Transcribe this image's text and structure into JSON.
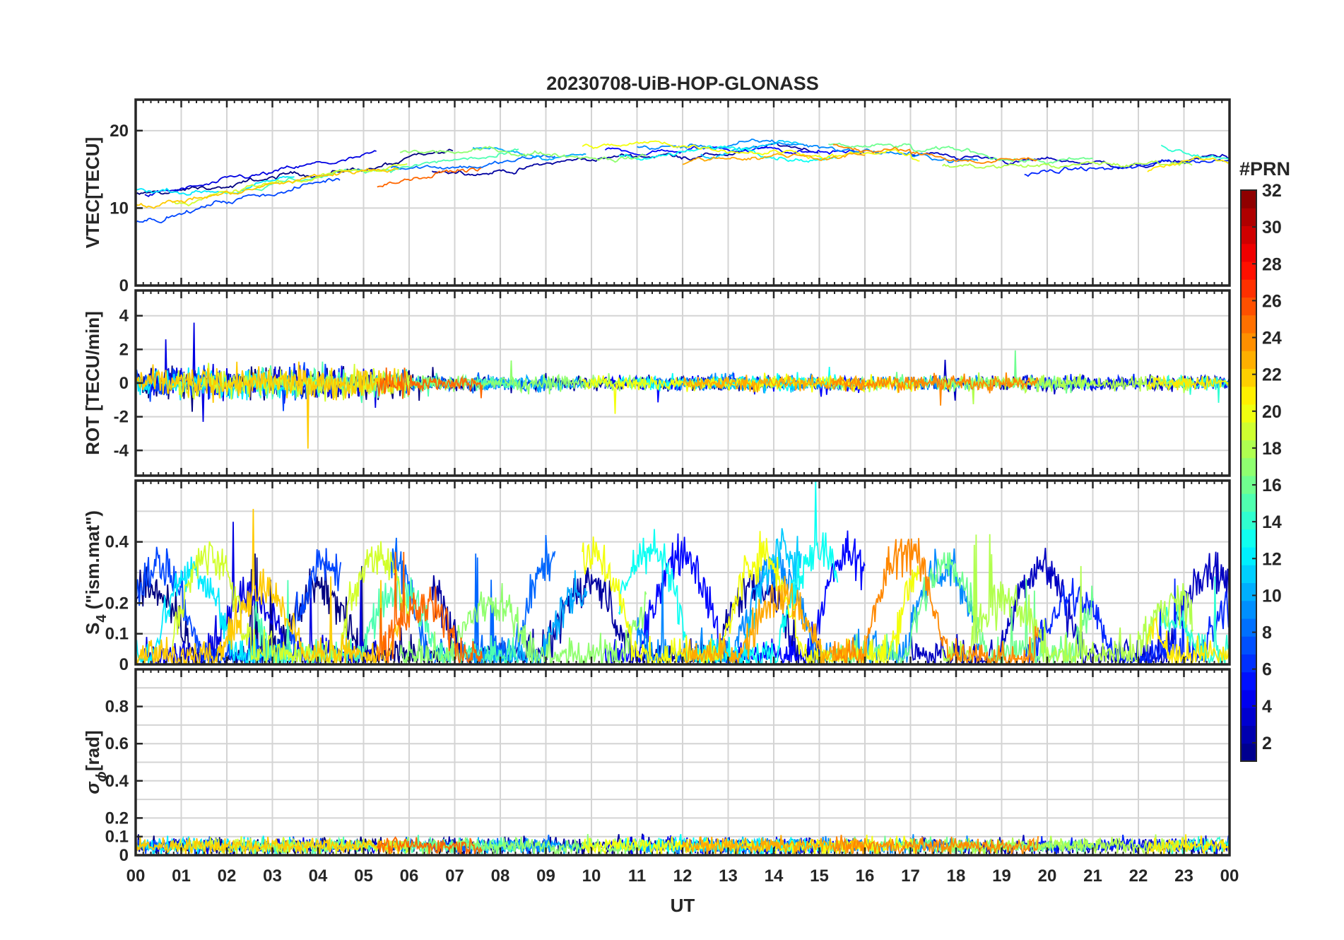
{
  "chart_data": {
    "type": "line",
    "title": "20230708-UiB-HOP-GLONASS",
    "xlabel": "UT",
    "x_tick_labels": [
      "00",
      "01",
      "02",
      "03",
      "04",
      "05",
      "06",
      "07",
      "08",
      "09",
      "10",
      "11",
      "12",
      "13",
      "14",
      "15",
      "16",
      "17",
      "18",
      "19",
      "20",
      "21",
      "22",
      "23",
      "00"
    ],
    "xlim_hours": [
      0,
      24
    ],
    "grid": true,
    "colormap": "jet",
    "colorbar": {
      "label": "#PRN",
      "range": [
        1,
        32
      ],
      "tick_labels": [
        "2",
        "4",
        "6",
        "8",
        "10",
        "12",
        "14",
        "16",
        "18",
        "20",
        "22",
        "24",
        "26",
        "28",
        "30",
        "32"
      ],
      "levels": 32
    },
    "panels": [
      {
        "id": "vtec",
        "ylabel": "VTEC[TECU]",
        "ylim": [
          0,
          24
        ],
        "y_tick_labels": [
          "0",
          "10",
          "20"
        ]
      },
      {
        "id": "rot",
        "ylabel": "ROT [TECU/min]",
        "ylim": [
          -5.5,
          5.5
        ],
        "y_tick_labels": [
          "-4",
          "-2",
          "0",
          "2",
          "4"
        ]
      },
      {
        "id": "s4",
        "ylabel": "S",
        "ylabel_subscript": "4",
        "ylabel_suffix": " (\"ism.mat\")",
        "ylim": [
          0,
          0.6
        ],
        "y_tick_labels": [
          "0",
          "0.1",
          "0.2",
          "0.4"
        ]
      },
      {
        "id": "sigma",
        "ylabel": "σ",
        "ylabel_subscript": "ϕ",
        "ylabel_suffix": "[rad]",
        "ylim": [
          0,
          1
        ],
        "y_tick_labels": [
          "0",
          "0.1",
          "0.2",
          "0.4",
          "0.6",
          "0.8"
        ]
      }
    ],
    "series_note_prn_hours": [
      {
        "prn": 1,
        "start_h": 0.0,
        "end_h": 7.0
      },
      {
        "prn": 2,
        "start_h": 6.5,
        "end_h": 15.0
      },
      {
        "prn": 3,
        "start_h": 17.0,
        "end_h": 24.0
      },
      {
        "prn": 4,
        "start_h": 0.2,
        "end_h": 5.3
      },
      {
        "prn": 5,
        "start_h": 10.3,
        "end_h": 16.0
      },
      {
        "prn": 6,
        "start_h": 19.5,
        "end_h": 24.0
      },
      {
        "prn": 7,
        "start_h": 0.0,
        "end_h": 4.5
      },
      {
        "prn": 8,
        "start_h": 5.6,
        "end_h": 9.2
      },
      {
        "prn": 9,
        "start_h": 11.0,
        "end_h": 18.5
      },
      {
        "prn": 10,
        "start_h": 7.4,
        "end_h": 9.9
      },
      {
        "prn": 11,
        "start_h": 12.4,
        "end_h": 14.6
      },
      {
        "prn": 12,
        "start_h": 0.0,
        "end_h": 3.5
      },
      {
        "prn": 13,
        "start_h": 10.6,
        "end_h": 15.4
      },
      {
        "prn": 14,
        "start_h": 22.5,
        "end_h": 24.0
      },
      {
        "prn": 15,
        "start_h": 2.6,
        "end_h": 8.4
      },
      {
        "prn": 16,
        "start_h": 15.2,
        "end_h": 21.0
      },
      {
        "prn": 17,
        "start_h": 5.8,
        "end_h": 11.2
      },
      {
        "prn": 18,
        "start_h": 17.7,
        "end_h": 23.2
      },
      {
        "prn": 19,
        "start_h": 0.8,
        "end_h": 6.0
      },
      {
        "prn": 20,
        "start_h": 9.8,
        "end_h": 17.2
      },
      {
        "prn": 21,
        "start_h": 22.2,
        "end_h": 24.0
      },
      {
        "prn": 22,
        "start_h": 0.0,
        "end_h": 5.8
      },
      {
        "prn": 23,
        "start_h": 12.0,
        "end_h": 16.0
      },
      {
        "prn": 24,
        "start_h": 15.3,
        "end_h": 19.8
      },
      {
        "prn": 25,
        "start_h": 5.3,
        "end_h": 7.6
      }
    ]
  }
}
